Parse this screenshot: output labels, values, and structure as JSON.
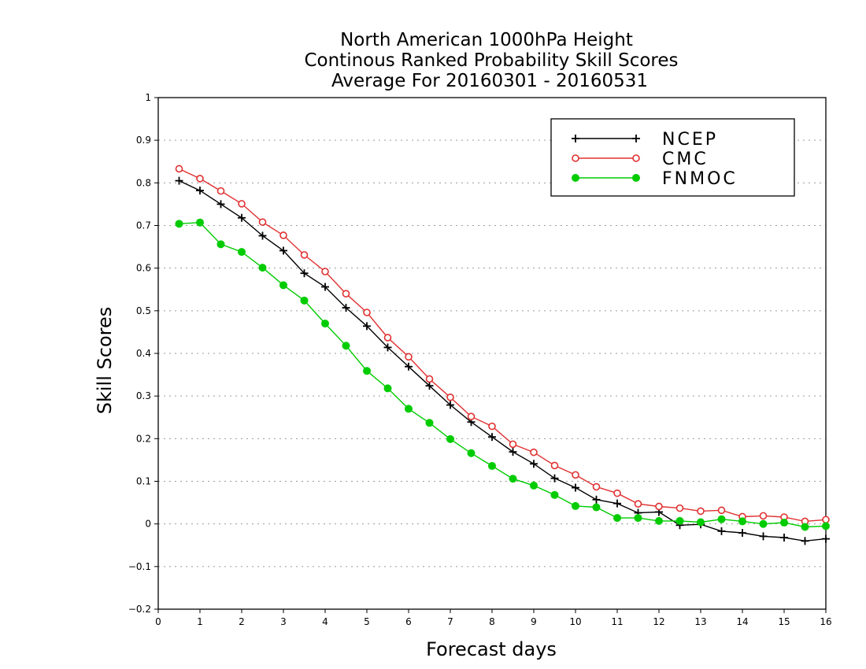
{
  "chart_data": {
    "type": "line",
    "title": [
      "North American 1000hPa Height",
      "Continous Ranked Probability Skill Scores",
      "Average For 20160301 - 20160531"
    ],
    "xlabel": "Forecast days",
    "ylabel": "Skill Scores",
    "xlim": [
      0,
      16
    ],
    "ylim": [
      -0.2,
      1
    ],
    "xticks": [
      "0",
      "1",
      "2",
      "3",
      "4",
      "5",
      "6",
      "7",
      "8",
      "9",
      "10",
      "11",
      "12",
      "13",
      "14",
      "15",
      "16"
    ],
    "yticks": [
      "−0.2",
      "−0.1",
      "0",
      "0.1",
      "0.2",
      "0.3",
      "0.4",
      "0.5",
      "0.6",
      "0.7",
      "0.8",
      "0.9",
      "1"
    ],
    "grid": true,
    "legend": "top-right",
    "x": [
      0.5,
      1,
      1.5,
      2,
      2.5,
      3,
      3.5,
      4,
      4.5,
      5,
      5.5,
      6,
      6.5,
      7,
      7.5,
      8,
      8.5,
      9,
      9.5,
      10,
      10.5,
      11,
      11.5,
      12,
      12.5,
      13,
      13.5,
      14,
      14.5,
      15,
      15.5,
      16
    ],
    "series": [
      {
        "name": "NCEP",
        "color": "#000000",
        "marker": "plus",
        "values": [
          0.805,
          0.782,
          0.75,
          0.718,
          0.676,
          0.641,
          0.588,
          0.556,
          0.507,
          0.464,
          0.414,
          0.369,
          0.324,
          0.279,
          0.239,
          0.204,
          0.169,
          0.141,
          0.107,
          0.085,
          0.057,
          0.048,
          0.026,
          0.028,
          -0.003,
          -0.001,
          -0.017,
          -0.021,
          -0.029,
          -0.032,
          -0.04,
          -0.035
        ]
      },
      {
        "name": "CMC",
        "color": "#e03030",
        "marker": "open-circle",
        "values": [
          0.833,
          0.81,
          0.781,
          0.751,
          0.708,
          0.677,
          0.631,
          0.592,
          0.54,
          0.496,
          0.437,
          0.392,
          0.34,
          0.297,
          0.252,
          0.229,
          0.187,
          0.168,
          0.137,
          0.115,
          0.087,
          0.072,
          0.047,
          0.041,
          0.037,
          0.03,
          0.032,
          0.017,
          0.019,
          0.016,
          0.006,
          0.01
        ]
      },
      {
        "name": "FNMOC",
        "color": "#00cc00",
        "marker": "filled-circle",
        "values": [
          0.704,
          0.707,
          0.656,
          0.638,
          0.601,
          0.56,
          0.524,
          0.47,
          0.418,
          0.359,
          0.318,
          0.27,
          0.237,
          0.199,
          0.166,
          0.136,
          0.106,
          0.09,
          0.068,
          0.042,
          0.039,
          0.014,
          0.014,
          0.007,
          0.007,
          0.004,
          0.011,
          0.006,
          0.0,
          0.003,
          -0.007,
          -0.005
        ]
      }
    ]
  }
}
